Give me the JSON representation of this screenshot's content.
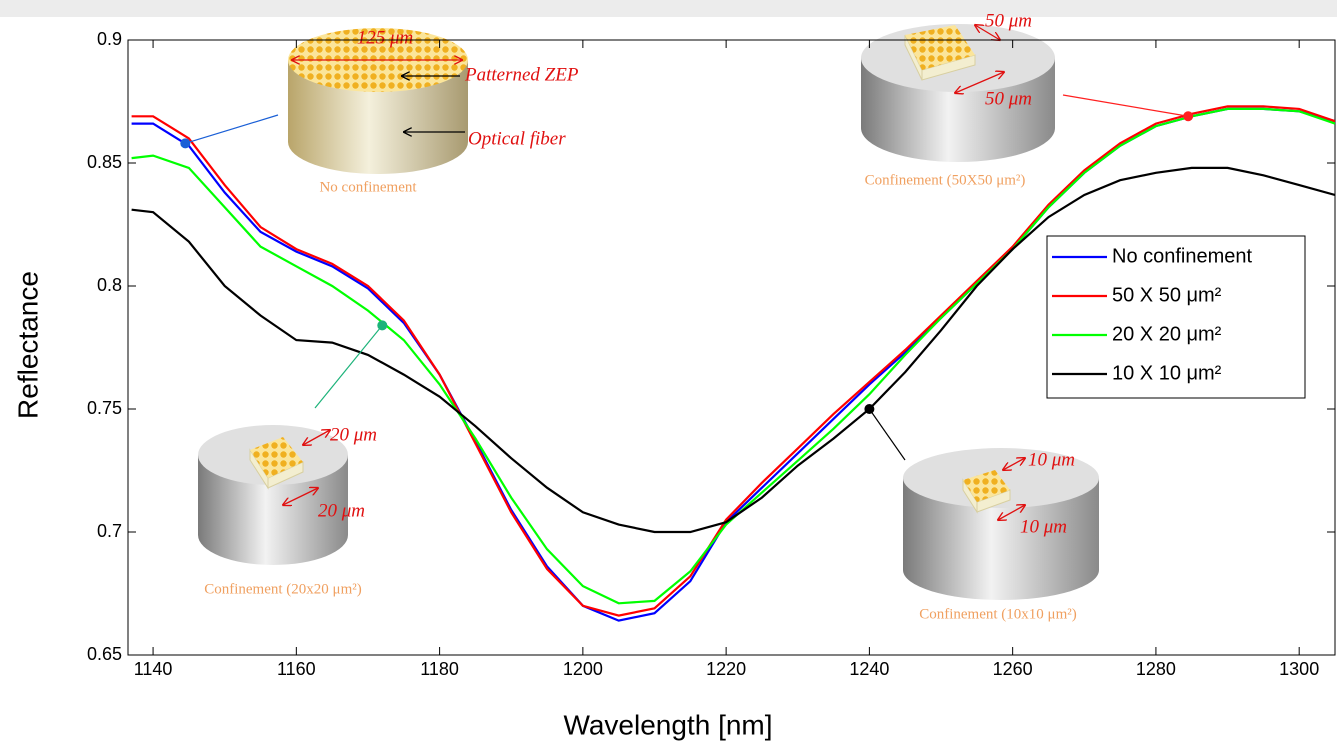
{
  "chart_data": {
    "type": "line",
    "x_label": "Wavelength [nm]",
    "y_label": "Reflectance",
    "xlim": [
      1136.5,
      1305
    ],
    "ylim": [
      0.65,
      0.9
    ],
    "xticks": [
      1140,
      1160,
      1180,
      1200,
      1220,
      1240,
      1260,
      1280,
      1300
    ],
    "yticks": [
      0.65,
      0.7,
      0.75,
      0.8,
      0.85,
      0.9
    ],
    "grid": false,
    "legend": "right",
    "x": [
      1137,
      1140,
      1145,
      1150,
      1155,
      1160,
      1165,
      1170,
      1175,
      1180,
      1185,
      1190,
      1195,
      1200,
      1205,
      1210,
      1215,
      1220,
      1225,
      1230,
      1235,
      1240,
      1245,
      1250,
      1255,
      1260,
      1265,
      1270,
      1275,
      1280,
      1285,
      1290,
      1295,
      1300,
      1305
    ],
    "series": [
      {
        "name": "No confinement",
        "color": "#0000ff",
        "values": [
          0.866,
          0.866,
          0.857,
          0.838,
          0.822,
          0.814,
          0.808,
          0.799,
          0.785,
          0.764,
          0.737,
          0.709,
          0.686,
          0.67,
          0.664,
          0.667,
          0.68,
          0.704,
          0.718,
          0.732,
          0.746,
          0.76,
          0.773,
          0.787,
          0.801,
          0.815,
          0.832,
          0.846,
          0.857,
          0.865,
          0.869,
          0.872,
          0.872,
          0.871,
          0.867
        ]
      },
      {
        "name": "50 X 50 μm²",
        "color": "#ff0000",
        "values": [
          0.869,
          0.869,
          0.86,
          0.841,
          0.824,
          0.815,
          0.809,
          0.8,
          0.786,
          0.764,
          0.736,
          0.708,
          0.685,
          0.67,
          0.666,
          0.669,
          0.682,
          0.705,
          0.72,
          0.734,
          0.748,
          0.761,
          0.774,
          0.788,
          0.802,
          0.816,
          0.833,
          0.847,
          0.858,
          0.866,
          0.87,
          0.873,
          0.873,
          0.872,
          0.867
        ]
      },
      {
        "name": "20 X 20 μm²",
        "color": "#00ff00",
        "values": [
          0.852,
          0.853,
          0.848,
          0.832,
          0.816,
          0.808,
          0.8,
          0.79,
          0.778,
          0.76,
          0.738,
          0.714,
          0.693,
          0.678,
          0.671,
          0.672,
          0.684,
          0.703,
          0.716,
          0.729,
          0.742,
          0.756,
          0.772,
          0.787,
          0.801,
          0.815,
          0.832,
          0.846,
          0.857,
          0.865,
          0.869,
          0.872,
          0.872,
          0.871,
          0.866
        ]
      },
      {
        "name": "10 X 10 μm²",
        "color": "#000000",
        "values": [
          0.831,
          0.83,
          0.818,
          0.8,
          0.788,
          0.778,
          0.777,
          0.772,
          0.764,
          0.755,
          0.743,
          0.73,
          0.718,
          0.708,
          0.703,
          0.7,
          0.7,
          0.704,
          0.714,
          0.727,
          0.738,
          0.75,
          0.765,
          0.782,
          0.8,
          0.815,
          0.828,
          0.837,
          0.843,
          0.846,
          0.848,
          0.848,
          0.845,
          0.841,
          0.837
        ]
      }
    ],
    "callouts": [
      {
        "x": 1144.5,
        "y": 0.858,
        "color": "#1a5fd6",
        "labels": [
          "125 μm",
          "Patterned ZEP",
          "Optical fiber"
        ],
        "caption": "No confinement"
      },
      {
        "x": 1284.5,
        "y": 0.869,
        "color": "#ff2020",
        "labels": [
          "50 μm",
          "50 μm"
        ],
        "caption": "Confinement (50X50 μm²)"
      },
      {
        "x": 1172,
        "y": 0.784,
        "color": "#1db37a",
        "labels": [
          "20 μm",
          "20 μm"
        ],
        "caption": "Confinement (20x20 μm²)"
      },
      {
        "x": 1240,
        "y": 0.75,
        "color": "#000000",
        "labels": [
          "10 μm",
          "10 μm"
        ],
        "caption": "Confinement (10x10 μm²)"
      }
    ]
  }
}
